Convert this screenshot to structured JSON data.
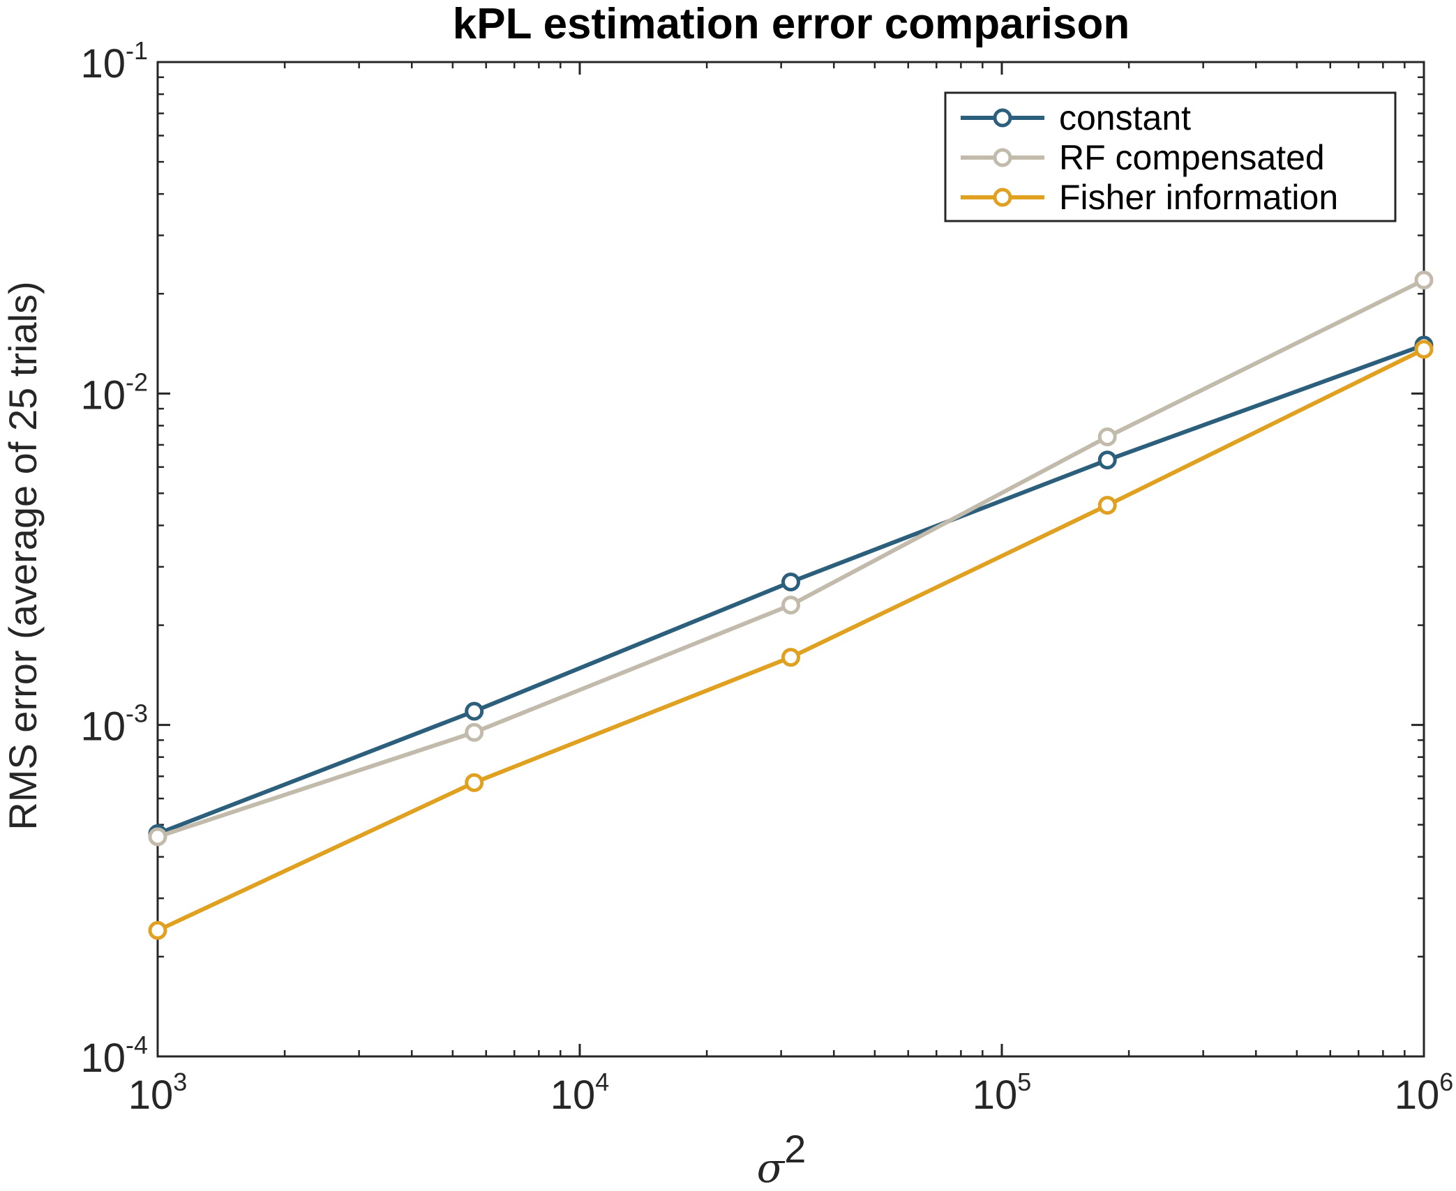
{
  "chart_data": {
    "type": "line",
    "title": "kPL estimation error comparison",
    "xlabel": "σ",
    "xlabel_superscript": "2",
    "ylabel": "RMS error (average of 25 trials)",
    "xscale": "log",
    "yscale": "log",
    "xlim": [
      1000,
      1000000
    ],
    "ylim": [
      0.0001,
      0.1
    ],
    "x_ticks": [
      {
        "base": "10",
        "exp": "3"
      },
      {
        "base": "10",
        "exp": "4"
      },
      {
        "base": "10",
        "exp": "5"
      },
      {
        "base": "10",
        "exp": "6"
      }
    ],
    "y_ticks": [
      {
        "base": "10",
        "exp": "-4"
      },
      {
        "base": "10",
        "exp": "-3"
      },
      {
        "base": "10",
        "exp": "-2"
      },
      {
        "base": "10",
        "exp": "-1"
      }
    ],
    "x": [
      1000,
      5623,
      31623,
      177828,
      1000000
    ],
    "series": [
      {
        "name": "constant",
        "color": "#2c5f7c",
        "values": [
          0.00047,
          0.0011,
          0.0027,
          0.0063,
          0.014
        ]
      },
      {
        "name": "RF compensated",
        "color": "#c2baab",
        "values": [
          0.00046,
          0.00095,
          0.0023,
          0.0074,
          0.022
        ]
      },
      {
        "name": "Fisher information",
        "color": "#e0a020",
        "values": [
          0.00024,
          0.00067,
          0.0016,
          0.0046,
          0.0136
        ]
      }
    ],
    "legend_position": "top-right",
    "grid": false,
    "marker": "circle"
  }
}
